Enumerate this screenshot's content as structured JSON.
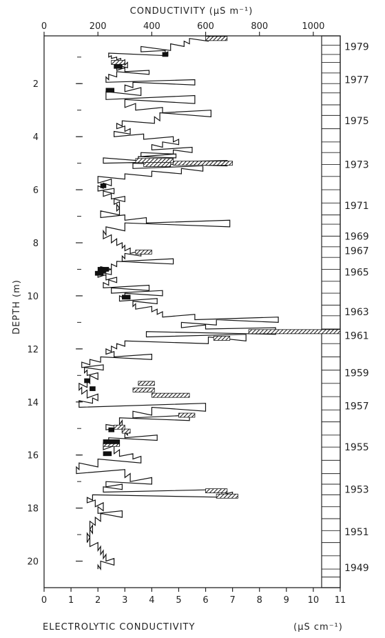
{
  "chart_data": {
    "type": "line",
    "top_axis": {
      "label": "CONDUCTIVITY (μS m⁻¹)",
      "range": [
        0,
        1100
      ],
      "ticks": [
        "0",
        "200",
        "400",
        "600",
        "800",
        "1000"
      ],
      "tick_values": [
        0,
        200,
        400,
        600,
        800,
        1000
      ]
    },
    "bottom_axis": {
      "label": "ELECTROLYTIC CONDUCTIVITY",
      "unit": "(μS cm⁻¹)",
      "range": [
        0,
        11
      ],
      "ticks": [
        "0",
        "1",
        "2",
        "3",
        "4",
        "5",
        "6",
        "7",
        "8",
        "9",
        "10",
        "11"
      ],
      "tick_values": [
        0,
        1,
        2,
        3,
        4,
        5,
        6,
        7,
        8,
        9,
        10,
        11
      ]
    },
    "y_axis": {
      "label": "DEPTH (m)",
      "range": [
        0.2,
        21
      ],
      "inverted": true,
      "ticks": [
        "2",
        "4",
        "6",
        "8",
        "10",
        "12",
        "14",
        "16",
        "18",
        "20"
      ],
      "tick_values": [
        2,
        4,
        6,
        8,
        10,
        12,
        14,
        16,
        18,
        20
      ]
    },
    "year_labels": [
      {
        "label": "1979",
        "depth": 0.6
      },
      {
        "label": "1977",
        "depth": 1.85
      },
      {
        "label": "1975",
        "depth": 3.4
      },
      {
        "label": "1973",
        "depth": 5.05
      },
      {
        "label": "1971",
        "depth": 6.6
      },
      {
        "label": "1969",
        "depth": 7.75
      },
      {
        "label": "1967",
        "depth": 8.3
      },
      {
        "label": "1965",
        "depth": 9.1
      },
      {
        "label": "1963",
        "depth": 10.6
      },
      {
        "label": "1961",
        "depth": 11.5
      },
      {
        "label": "1959",
        "depth": 12.9
      },
      {
        "label": "1957",
        "depth": 14.15
      },
      {
        "label": "1955",
        "depth": 15.7
      },
      {
        "label": "1953",
        "depth": 17.3
      },
      {
        "label": "1951",
        "depth": 18.9
      },
      {
        "label": "1949",
        "depth": 20.25
      }
    ],
    "strip_marks_depth": [
      0.2,
      0.55,
      0.9,
      1.2,
      1.6,
      2.0,
      2.35,
      2.8,
      3.2,
      3.7,
      4.2,
      4.6,
      5.05,
      5.5,
      6.0,
      6.5,
      6.95,
      7.3,
      7.75,
      8.15,
      8.55,
      9.0,
      9.45,
      9.9,
      10.35,
      10.75,
      11.25,
      11.8,
      12.3,
      12.8,
      13.3,
      13.8,
      14.3,
      14.75,
      15.25,
      15.7,
      16.2,
      16.7,
      17.1,
      17.5,
      17.95,
      18.4,
      18.85,
      19.3,
      19.8,
      20.3,
      20.6,
      21.0
    ],
    "series": [
      {
        "profile": [
          [
            0.2,
            640
          ],
          [
            0.3,
            610
          ],
          [
            0.4,
            540
          ],
          [
            0.5,
            520
          ],
          [
            0.6,
            470
          ],
          [
            0.75,
            360
          ],
          [
            0.8,
            450
          ],
          [
            0.85,
            460
          ],
          [
            0.95,
            240
          ],
          [
            1.0,
            250
          ],
          [
            1.05,
            270
          ],
          [
            1.1,
            285
          ],
          [
            1.2,
            300
          ],
          [
            1.3,
            310
          ],
          [
            1.4,
            270
          ],
          [
            1.5,
            300
          ],
          [
            1.55,
            390
          ],
          [
            1.65,
            270
          ],
          [
            1.75,
            240
          ],
          [
            1.85,
            230
          ],
          [
            1.95,
            560
          ],
          [
            2.05,
            330
          ],
          [
            2.15,
            300
          ],
          [
            2.3,
            360
          ],
          [
            2.45,
            230
          ],
          [
            2.6,
            560
          ],
          [
            2.75,
            300
          ],
          [
            2.9,
            340
          ],
          [
            3.0,
            440
          ],
          [
            3.1,
            620
          ],
          [
            3.25,
            430
          ],
          [
            3.4,
            410
          ],
          [
            3.5,
            290
          ],
          [
            3.6,
            270
          ],
          [
            3.7,
            300
          ],
          [
            3.8,
            320
          ],
          [
            3.9,
            260
          ],
          [
            4.0,
            370
          ],
          [
            4.1,
            480
          ],
          [
            4.2,
            500
          ],
          [
            4.3,
            440
          ],
          [
            4.4,
            400
          ],
          [
            4.5,
            550
          ],
          [
            4.6,
            480
          ],
          [
            4.65,
            360
          ],
          [
            4.75,
            490
          ],
          [
            4.8,
            350
          ],
          [
            4.9,
            220
          ],
          [
            5.0,
            680
          ],
          [
            5.1,
            330
          ],
          [
            5.2,
            590
          ],
          [
            5.3,
            510
          ],
          [
            5.4,
            400
          ],
          [
            5.5,
            300
          ],
          [
            5.6,
            200
          ],
          [
            5.75,
            250
          ],
          [
            5.85,
            220
          ],
          [
            5.95,
            200
          ],
          [
            6.05,
            260
          ],
          [
            6.15,
            220
          ],
          [
            6.25,
            250
          ],
          [
            6.35,
            300
          ],
          [
            6.45,
            260
          ],
          [
            6.55,
            280
          ],
          [
            6.7,
            270
          ],
          [
            6.8,
            280
          ],
          [
            6.95,
            210
          ],
          [
            7.05,
            300
          ],
          [
            7.15,
            380
          ],
          [
            7.25,
            690
          ],
          [
            7.4,
            300
          ],
          [
            7.55,
            230
          ],
          [
            7.7,
            220
          ],
          [
            7.85,
            250
          ],
          [
            8.0,
            270
          ],
          [
            8.1,
            290
          ],
          [
            8.2,
            300
          ],
          [
            8.3,
            320
          ],
          [
            8.4,
            360
          ],
          [
            8.5,
            300
          ],
          [
            8.6,
            290
          ],
          [
            8.7,
            480
          ],
          [
            8.8,
            270
          ],
          [
            8.9,
            250
          ],
          [
            9.0,
            210
          ],
          [
            9.1,
            250
          ],
          [
            9.2,
            200
          ],
          [
            9.3,
            230
          ],
          [
            9.4,
            270
          ],
          [
            9.5,
            240
          ],
          [
            9.6,
            220
          ],
          [
            9.7,
            390
          ],
          [
            9.8,
            250
          ],
          [
            9.9,
            440
          ],
          [
            10.0,
            300
          ],
          [
            10.1,
            280
          ],
          [
            10.2,
            420
          ],
          [
            10.3,
            330
          ],
          [
            10.4,
            340
          ],
          [
            10.5,
            400
          ],
          [
            10.6,
            420
          ],
          [
            10.7,
            440
          ],
          [
            10.8,
            560
          ],
          [
            10.9,
            870
          ],
          [
            11.0,
            640
          ],
          [
            11.1,
            510
          ],
          [
            11.2,
            600
          ],
          [
            11.25,
            860
          ],
          [
            11.35,
            860
          ],
          [
            11.45,
            380
          ],
          [
            11.55,
            750
          ],
          [
            11.7,
            610
          ],
          [
            11.8,
            300
          ],
          [
            11.9,
            270
          ],
          [
            12.0,
            250
          ],
          [
            12.1,
            230
          ],
          [
            12.2,
            260
          ],
          [
            12.3,
            400
          ],
          [
            12.4,
            210
          ],
          [
            12.5,
            170
          ],
          [
            12.6,
            140
          ],
          [
            12.7,
            220
          ],
          [
            12.8,
            150
          ],
          [
            12.9,
            160
          ],
          [
            13.0,
            200
          ],
          [
            13.15,
            170
          ],
          [
            13.3,
            160
          ],
          [
            13.45,
            130
          ],
          [
            13.55,
            140
          ],
          [
            13.7,
            160
          ],
          [
            13.85,
            200
          ],
          [
            13.95,
            180
          ],
          [
            14.05,
            130
          ],
          [
            14.2,
            600
          ],
          [
            14.35,
            400
          ],
          [
            14.5,
            330
          ],
          [
            14.6,
            540
          ],
          [
            14.7,
            280
          ],
          [
            14.85,
            290
          ],
          [
            14.95,
            230
          ],
          [
            15.05,
            290
          ],
          [
            15.15,
            310
          ],
          [
            15.25,
            300
          ],
          [
            15.35,
            420
          ],
          [
            15.45,
            240
          ],
          [
            15.55,
            280
          ],
          [
            15.65,
            220
          ],
          [
            15.8,
            260
          ],
          [
            15.95,
            280
          ],
          [
            16.05,
            330
          ],
          [
            16.15,
            360
          ],
          [
            16.3,
            200
          ],
          [
            16.45,
            130
          ],
          [
            16.55,
            120
          ],
          [
            16.7,
            300
          ],
          [
            16.85,
            320
          ],
          [
            17.0,
            400
          ],
          [
            17.1,
            230
          ],
          [
            17.2,
            290
          ],
          [
            17.3,
            220
          ],
          [
            17.4,
            660
          ],
          [
            17.5,
            700
          ],
          [
            17.6,
            180
          ],
          [
            17.7,
            160
          ],
          [
            17.8,
            190
          ],
          [
            17.95,
            220
          ],
          [
            18.1,
            200
          ],
          [
            18.2,
            290
          ],
          [
            18.35,
            210
          ],
          [
            18.5,
            190
          ],
          [
            18.65,
            170
          ],
          [
            18.8,
            180
          ],
          [
            18.95,
            170
          ],
          [
            19.1,
            160
          ],
          [
            19.3,
            170
          ],
          [
            19.45,
            200
          ],
          [
            19.6,
            210
          ],
          [
            19.75,
            220
          ],
          [
            19.9,
            230
          ],
          [
            20.0,
            260
          ],
          [
            20.15,
            210
          ],
          [
            20.3,
            200
          ]
        ],
        "hatched": [
          [
            0.3,
            600,
            680
          ],
          [
            1.2,
            250,
            300
          ],
          [
            4.9,
            340,
            480
          ],
          [
            5.0,
            480,
            700
          ],
          [
            5.05,
            370,
            470
          ],
          [
            8.35,
            340,
            400
          ],
          [
            11.35,
            760,
            1100
          ],
          [
            11.6,
            630,
            690
          ],
          [
            13.3,
            350,
            410
          ],
          [
            13.55,
            330,
            410
          ],
          [
            13.75,
            400,
            540
          ],
          [
            14.5,
            500,
            560
          ],
          [
            14.95,
            260,
            300
          ],
          [
            15.1,
            290,
            320
          ],
          [
            15.6,
            220,
            280
          ],
          [
            17.35,
            600,
            680
          ],
          [
            17.55,
            640,
            720
          ]
        ],
        "solid": [
          [
            0.9,
            440,
            460
          ],
          [
            1.35,
            260,
            290
          ],
          [
            2.25,
            230,
            260
          ],
          [
            5.85,
            210,
            230
          ],
          [
            9.0,
            200,
            240
          ],
          [
            9.05,
            210,
            230
          ],
          [
            9.15,
            190,
            220
          ],
          [
            10.05,
            290,
            320
          ],
          [
            13.2,
            150,
            170
          ],
          [
            13.5,
            170,
            190
          ],
          [
            15.05,
            240,
            260
          ],
          [
            15.5,
            220,
            280
          ],
          [
            15.95,
            220,
            250
          ]
        ]
      }
    ]
  }
}
